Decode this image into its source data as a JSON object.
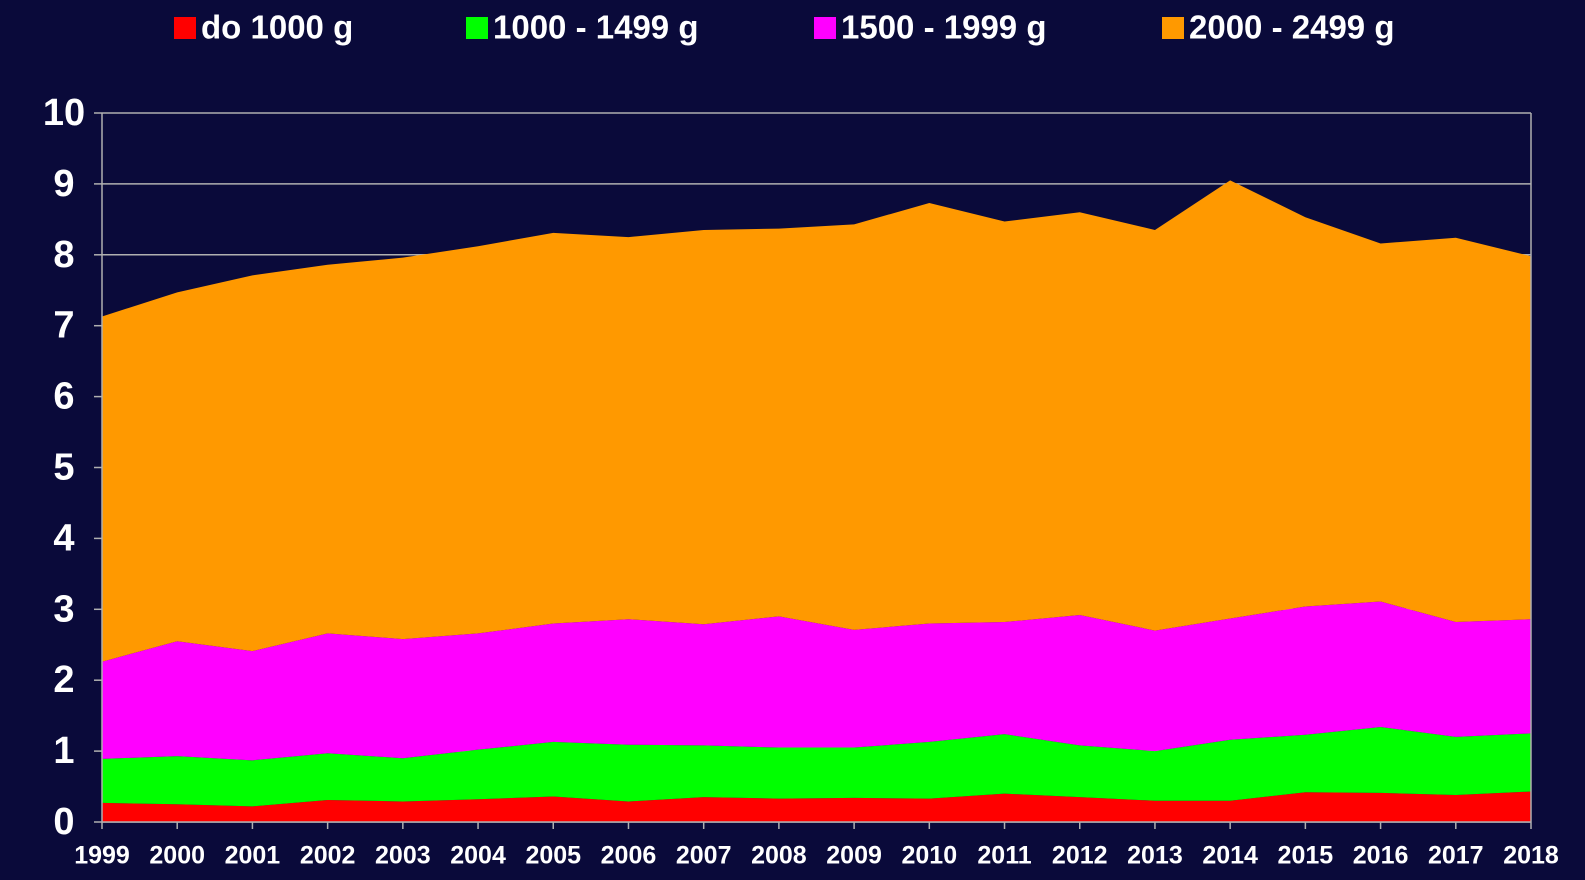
{
  "chart_data": {
    "type": "stacked_area",
    "categories": [
      "1999",
      "2000",
      "2001",
      "2002",
      "2003",
      "2004",
      "2005",
      "2006",
      "2007",
      "2008",
      "2009",
      "2010",
      "2011",
      "2012",
      "2013",
      "2014",
      "2015",
      "2016",
      "2017",
      "2018"
    ],
    "series": [
      {
        "name": "do 1000 g",
        "color": "#ff0000",
        "values": [
          0.27,
          0.25,
          0.22,
          0.31,
          0.29,
          0.32,
          0.36,
          0.29,
          0.35,
          0.33,
          0.34,
          0.33,
          0.4,
          0.35,
          0.3,
          0.3,
          0.42,
          0.41,
          0.38,
          0.43
        ]
      },
      {
        "name": "1000 - 1499 g",
        "color": "#00ff00",
        "values": [
          0.62,
          0.68,
          0.65,
          0.66,
          0.61,
          0.7,
          0.77,
          0.8,
          0.73,
          0.72,
          0.71,
          0.8,
          0.84,
          0.73,
          0.7,
          0.86,
          0.81,
          0.93,
          0.82,
          0.82
        ]
      },
      {
        "name": "1500 - 1999 g",
        "color": "#ff00ff",
        "values": [
          1.37,
          1.62,
          1.54,
          1.69,
          1.68,
          1.64,
          1.67,
          1.77,
          1.71,
          1.85,
          1.66,
          1.67,
          1.58,
          1.84,
          1.7,
          1.71,
          1.81,
          1.77,
          1.62,
          1.61
        ]
      },
      {
        "name": "2000 - 2499 g",
        "color": "#ff9900",
        "values": [
          4.87,
          4.92,
          5.3,
          5.2,
          5.38,
          5.46,
          5.51,
          5.39,
          5.56,
          5.47,
          5.72,
          5.93,
          5.65,
          5.68,
          5.65,
          6.18,
          5.49,
          5.05,
          5.42,
          5.12
        ]
      }
    ],
    "ylim": [
      0,
      10
    ],
    "yticks": [
      0,
      1,
      2,
      3,
      4,
      5,
      6,
      7,
      8,
      9,
      10
    ],
    "grid": true,
    "legend": "top"
  }
}
